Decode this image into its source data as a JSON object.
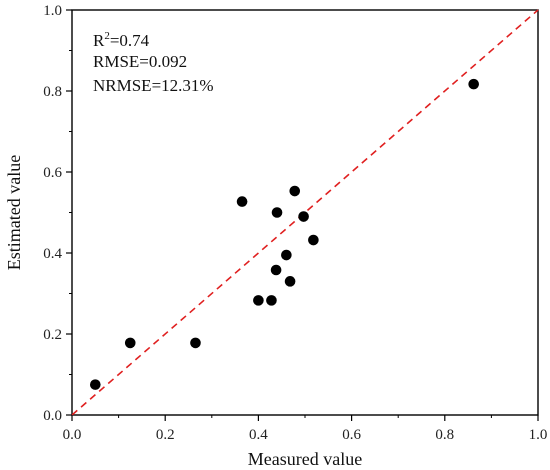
{
  "chart_data": {
    "type": "scatter",
    "title": "",
    "xlabel": "Measured value",
    "ylabel": "Estimated value",
    "xlim": [
      0.0,
      1.0
    ],
    "ylim": [
      0.0,
      1.0
    ],
    "xticks": [
      0.0,
      0.2,
      0.4,
      0.6,
      0.8,
      1.0
    ],
    "yticks": [
      0.0,
      0.2,
      0.4,
      0.6,
      0.8,
      1.0
    ],
    "xtick_labels": [
      "0.0",
      "0.2",
      "0.4",
      "0.6",
      "0.8",
      "1.0"
    ],
    "ytick_labels": [
      "0.0",
      "0.2",
      "0.4",
      "0.6",
      "0.8",
      "1.0"
    ],
    "grid": false,
    "reference_line": {
      "type": "1:1",
      "style": "dashed",
      "color": "#e02020"
    },
    "point_color": "#000000",
    "points": [
      {
        "x": 0.05,
        "y": 0.075
      },
      {
        "x": 0.125,
        "y": 0.178
      },
      {
        "x": 0.265,
        "y": 0.178
      },
      {
        "x": 0.365,
        "y": 0.527
      },
      {
        "x": 0.4,
        "y": 0.283
      },
      {
        "x": 0.428,
        "y": 0.283
      },
      {
        "x": 0.438,
        "y": 0.358
      },
      {
        "x": 0.44,
        "y": 0.5
      },
      {
        "x": 0.46,
        "y": 0.395
      },
      {
        "x": 0.468,
        "y": 0.33
      },
      {
        "x": 0.478,
        "y": 0.553
      },
      {
        "x": 0.497,
        "y": 0.49
      },
      {
        "x": 0.518,
        "y": 0.432
      },
      {
        "x": 0.862,
        "y": 0.817
      }
    ],
    "annotations": {
      "r2_prefix": "R",
      "r2_sup": "2",
      "r2_value": "=0.74",
      "rmse": "RMSE=0.092",
      "nrmse": "NRMSE=12.31%"
    }
  }
}
